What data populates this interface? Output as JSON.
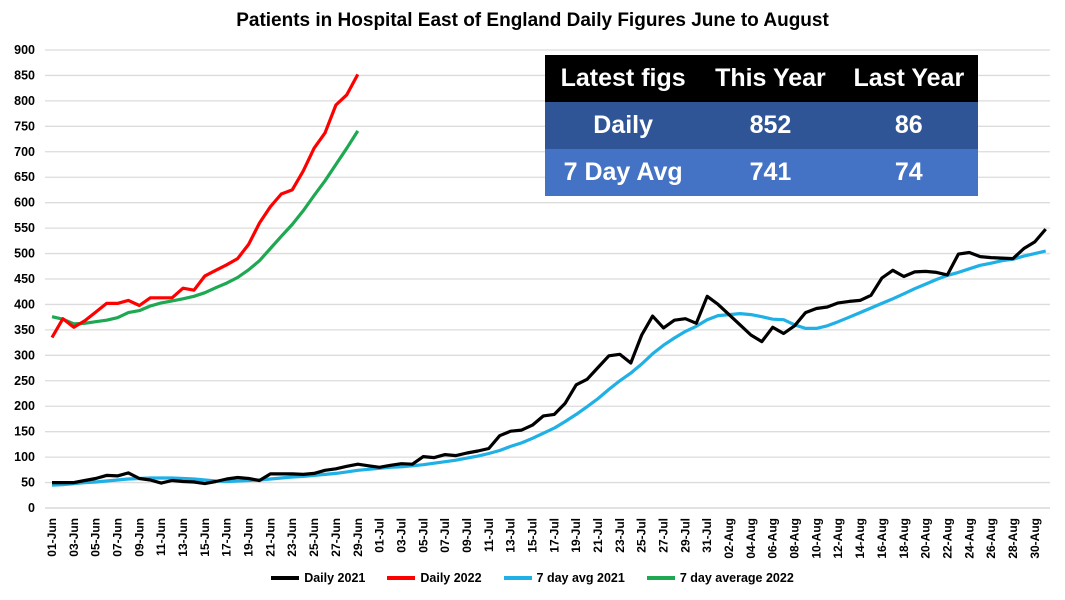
{
  "chart_data": {
    "type": "line",
    "title": "Patients in Hospital East of England Daily Figures June to August",
    "xlabel": "",
    "ylabel": "",
    "ylim": [
      0,
      900
    ],
    "yticks": [
      0,
      50,
      100,
      150,
      200,
      250,
      300,
      350,
      400,
      450,
      500,
      550,
      600,
      650,
      700,
      750,
      800,
      850,
      900
    ],
    "grid": true,
    "legend": "bottom",
    "x_range": [
      "01-Jun",
      "31-Aug"
    ],
    "xtick_labels": [
      "01-Jun",
      "03-Jun",
      "05-Jun",
      "07-Jun",
      "09-Jun",
      "11-Jun",
      "13-Jun",
      "15-Jun",
      "17-Jun",
      "19-Jun",
      "21-Jun",
      "23-Jun",
      "25-Jun",
      "27-Jun",
      "29-Jun",
      "01-Jul",
      "03-Jul",
      "05-Jul",
      "07-Jul",
      "09-Jul",
      "11-Jul",
      "13-Jul",
      "15-Jul",
      "17-Jul",
      "19-Jul",
      "21-Jul",
      "23-Jul",
      "25-Jul",
      "27-Jul",
      "29-Jul",
      "31-Jul",
      "02-Aug",
      "04-Aug",
      "06-Aug",
      "08-Aug",
      "10-Aug",
      "12-Aug",
      "14-Aug",
      "16-Aug",
      "18-Aug",
      "20-Aug",
      "22-Aug",
      "24-Aug",
      "26-Aug",
      "28-Aug",
      "30-Aug"
    ],
    "series": [
      {
        "name": "Daily 2021",
        "color": "#000000",
        "start": "01-Jun",
        "values": [
          50,
          50,
          50,
          54,
          58,
          64,
          63,
          69,
          58,
          55,
          49,
          54,
          52,
          51,
          48,
          52,
          57,
          60,
          58,
          54,
          67,
          67,
          67,
          66,
          68,
          74,
          77,
          82,
          86,
          83,
          80,
          84,
          87,
          86,
          101,
          99,
          105,
          103,
          108,
          112,
          117,
          142,
          151,
          153,
          163,
          181,
          184,
          206,
          242,
          253,
          276,
          299,
          302,
          285,
          340,
          377,
          354,
          369,
          372,
          363,
          416,
          400,
          380,
          360,
          340,
          327,
          355,
          343,
          358,
          384,
          392,
          395,
          403,
          406,
          408,
          418,
          452,
          467,
          455,
          464,
          465,
          463,
          458,
          499,
          502,
          494,
          492,
          491,
          490,
          510,
          523,
          548
        ]
      },
      {
        "name": "Daily 2022",
        "color": "#FF0000",
        "start": "01-Jun",
        "values": [
          335,
          372,
          355,
          368,
          385,
          402,
          402,
          408,
          398,
          413,
          413,
          413,
          432,
          428,
          456,
          467,
          478,
          490,
          518,
          560,
          592,
          617,
          625,
          662,
          707,
          737,
          792,
          812,
          852
        ]
      },
      {
        "name": "7 day avg 2021",
        "color": "#1FB0E6",
        "start": "01-Jun",
        "values": [
          45,
          46,
          48,
          50,
          51,
          53,
          55,
          57,
          58,
          59,
          59,
          59,
          58,
          57,
          55,
          53,
          52,
          53,
          54,
          55,
          57,
          59,
          61,
          62,
          64,
          66,
          68,
          71,
          74,
          76,
          78,
          80,
          81,
          83,
          85,
          88,
          91,
          94,
          98,
          102,
          107,
          113,
          121,
          128,
          137,
          147,
          157,
          170,
          184,
          199,
          215,
          233,
          250,
          265,
          283,
          303,
          320,
          334,
          347,
          357,
          370,
          378,
          380,
          382,
          380,
          376,
          371,
          370,
          360,
          353,
          353,
          358,
          366,
          375,
          384,
          393,
          402,
          411,
          421,
          431,
          440,
          449,
          457,
          463,
          470,
          477,
          481,
          486,
          489,
          495,
          500,
          505
        ]
      },
      {
        "name": "7 day average 2022",
        "color": "#1DA851",
        "start": "01-Jun",
        "values": [
          376,
          371,
          362,
          363,
          366,
          369,
          374,
          384,
          388,
          397,
          403,
          407,
          411,
          416,
          423,
          433,
          442,
          453,
          468,
          486,
          510,
          534,
          557,
          584,
          614,
          643,
          675,
          707,
          741
        ]
      }
    ],
    "table": {
      "headers": [
        "Latest figs",
        "This Year",
        "Last Year"
      ],
      "rows": [
        {
          "label": "Daily",
          "this_year": "852",
          "last_year": "86",
          "color": "#2F5597"
        },
        {
          "label": "7 Day Avg",
          "this_year": "741",
          "last_year": "74",
          "color": "#4472C4"
        }
      ]
    }
  }
}
